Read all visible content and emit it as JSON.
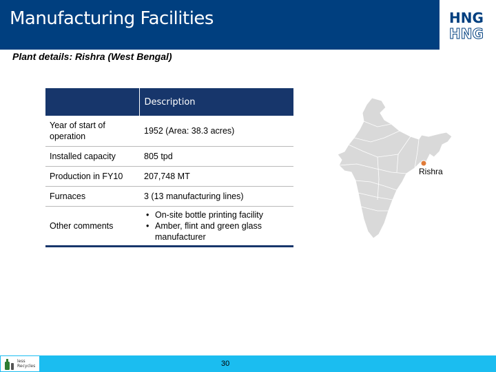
{
  "header": {
    "title": "Manufacturing Facilities",
    "logo_top": "HNG",
    "logo_bottom": "HNG"
  },
  "subtitle": "Plant details: Rishra (West Bengal)",
  "table": {
    "header": "Description",
    "rows": [
      {
        "label": "Year of start of operation",
        "value": "1952 (Area: 38.3 acres)"
      },
      {
        "label": "Installed capacity",
        "value": "805 tpd"
      },
      {
        "label": "Production in FY10",
        "value": "207,748 MT"
      },
      {
        "label": "Furnaces",
        "value": "3 (13 manufacturing lines)"
      }
    ],
    "comments": {
      "label": "Other comments",
      "items": [
        "On-site bottle printing facility",
        "Amber, flint and green glass manufacturer"
      ]
    }
  },
  "map": {
    "marker_label": "Rishra",
    "land_color": "#d9d9d9",
    "marker_color": "#e07b39"
  },
  "footer": {
    "logo_text_line1": "less",
    "logo_text_line2": "Recycles",
    "page_number": "30"
  },
  "colors": {
    "header": "#003f7f",
    "table_header": "#17366b",
    "footer": "#1bbdf0"
  }
}
